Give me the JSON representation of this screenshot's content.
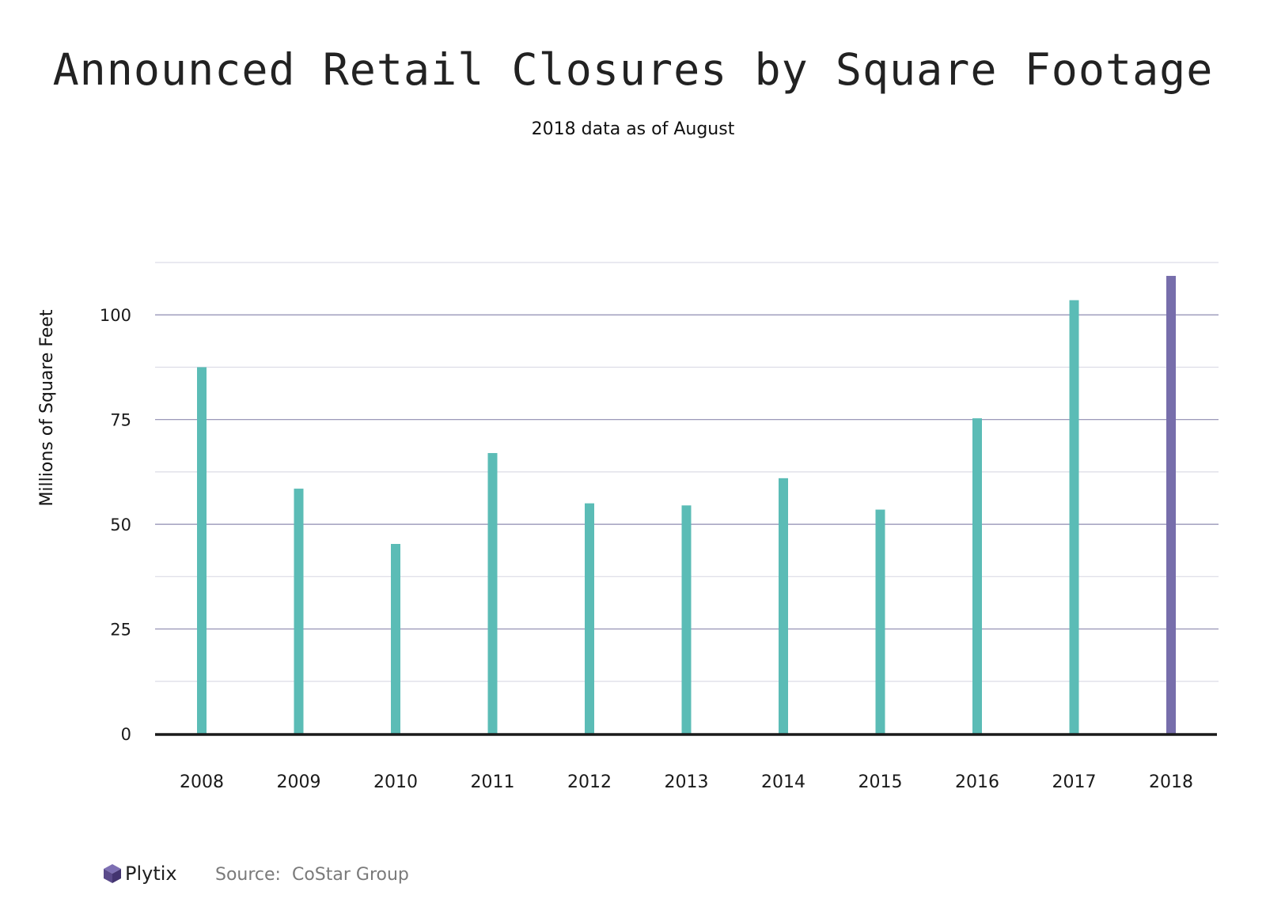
{
  "header": {
    "title": "Announced Retail Closures by Square Footage",
    "subtitle": "2018 data as of August"
  },
  "footer": {
    "brand": "Plytix",
    "source_label": "Source:",
    "source_value": "CoStar Group"
  },
  "colors": {
    "bar_default": "#5bbcb6",
    "bar_highlight": "#776eab",
    "major_grid": "#8e8cb0",
    "minor_grid": "#dcdce6",
    "axis_line": "#1a1a1a",
    "brand_logo": "#5a4a8a"
  },
  "chart_data": {
    "type": "bar",
    "title": "Announced Retail Closures by Square Footage",
    "subtitle": "2018 data as of August",
    "xlabel": "",
    "ylabel": "Millions of Square Feet",
    "categories": [
      "2008",
      "2009",
      "2010",
      "2011",
      "2012",
      "2013",
      "2014",
      "2015",
      "2016",
      "2017",
      "2018"
    ],
    "values": [
      87.5,
      58.5,
      45.3,
      67,
      55,
      54.5,
      61,
      53.5,
      75.3,
      103.5,
      109.3
    ],
    "highlight_category": "2018",
    "ylim": [
      0,
      112.5
    ],
    "yticks": [
      0,
      25,
      50,
      75,
      100
    ],
    "minor_yticks": [
      12.5,
      37.5,
      62.5,
      87.5,
      112.5
    ],
    "grid": true,
    "legend": "none"
  }
}
